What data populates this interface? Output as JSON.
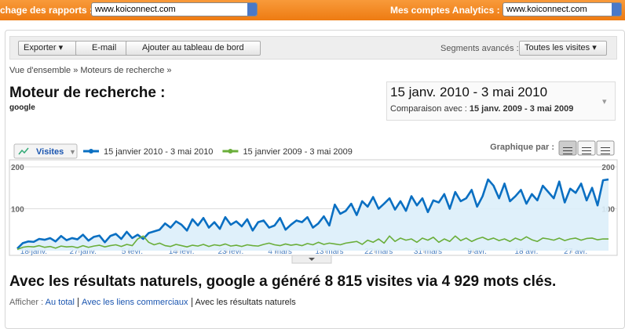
{
  "header": {
    "reports_label": "chage des rapports :",
    "reports_select": "www.koiconnect.com",
    "accounts_label": "Mes comptes Analytics :",
    "accounts_select": "www.koiconnect.com"
  },
  "toolbar": {
    "buttons": [
      "Exporter",
      "E-mail",
      "Ajouter au tableau de bord"
    ],
    "segments_label": "Segments avancés :",
    "segments_select": "Toutes les visites"
  },
  "breadcrumb": "Vue d'ensemble » Moteurs de recherche »",
  "title": "Moteur de recherche :",
  "subtitle": "google",
  "date_range": {
    "current": "15 janv. 2010 - 3 mai 2010",
    "compare_label": "Comparaison avec :",
    "compare": "15 janv. 2009 - 3 mai 2009"
  },
  "chart_data": {
    "type": "line",
    "metric_select": "Visites",
    "graph_by_label": "Graphique par :",
    "xlim": [
      0,
      108
    ],
    "xticks": [
      {
        "value": 3,
        "label": "18 janv."
      },
      {
        "value": 12,
        "label": "27 janv."
      },
      {
        "value": 21,
        "label": "5 févr."
      },
      {
        "value": 30,
        "label": "14 févr."
      },
      {
        "value": 39,
        "label": "23 févr."
      },
      {
        "value": 48,
        "label": "4 mars"
      },
      {
        "value": 57,
        "label": "13 mars"
      },
      {
        "value": 66,
        "label": "22 mars"
      },
      {
        "value": 75,
        "label": "31 mars"
      },
      {
        "value": 84,
        "label": "9 avr."
      },
      {
        "value": 93,
        "label": "18 avr."
      },
      {
        "value": 102,
        "label": "27 avr."
      }
    ],
    "ylim": [
      0,
      200
    ],
    "yticks": [
      100,
      200
    ],
    "grid": true,
    "series": [
      {
        "name": "15 janvier 2010 - 3 mai 2010",
        "color": "#0a6fc2",
        "area": true,
        "values": [
          5,
          18,
          22,
          21,
          28,
          26,
          30,
          22,
          35,
          25,
          30,
          27,
          38,
          24,
          33,
          36,
          20,
          35,
          40,
          28,
          45,
          30,
          38,
          28,
          42,
          46,
          50,
          65,
          55,
          70,
          62,
          48,
          75,
          60,
          78,
          55,
          68,
          52,
          80,
          62,
          70,
          58,
          75,
          48,
          68,
          72,
          55,
          60,
          78,
          50,
          62,
          72,
          68,
          80,
          55,
          65,
          82,
          60,
          110,
          88,
          95,
          112,
          85,
          118,
          105,
          128,
          100,
          112,
          125,
          98,
          118,
          95,
          130,
          108,
          125,
          92,
          120,
          115,
          135,
          100,
          140,
          118,
          125,
          145,
          105,
          130,
          170,
          155,
          125,
          160,
          118,
          130,
          145,
          112,
          135,
          120,
          155,
          140,
          125,
          165,
          115,
          148,
          138,
          160,
          120,
          150,
          108,
          168,
          170
        ]
      },
      {
        "name": "15 janvier 2009 - 3 mai 2009",
        "color": "#6aae3a",
        "area": false,
        "values": [
          3,
          8,
          10,
          9,
          12,
          8,
          10,
          6,
          11,
          9,
          10,
          7,
          12,
          8,
          11,
          13,
          9,
          12,
          14,
          10,
          15,
          12,
          28,
          35,
          20,
          14,
          18,
          12,
          10,
          15,
          12,
          9,
          13,
          11,
          15,
          10,
          14,
          12,
          16,
          11,
          13,
          10,
          14,
          12,
          11,
          15,
          18,
          14,
          12,
          16,
          13,
          15,
          12,
          17,
          14,
          20,
          15,
          18,
          16,
          14,
          18,
          20,
          22,
          15,
          25,
          20,
          28,
          18,
          35,
          22,
          30,
          25,
          28,
          20,
          30,
          25,
          32,
          20,
          28,
          22,
          35,
          24,
          30,
          22,
          28,
          32,
          26,
          30,
          24,
          28,
          22,
          30,
          25,
          33,
          26,
          22,
          30,
          28,
          25,
          30,
          24,
          28,
          30,
          25,
          29,
          30,
          26,
          28,
          28
        ]
      }
    ]
  },
  "summary": "Avec les résultats naturels, google a généré 8 815 visites via 4 929 mots clés.",
  "filter": {
    "label": "Afficher :",
    "links": [
      "Au total",
      "Avec les liens commerciaux",
      "Avec les résultats naturels"
    ]
  }
}
